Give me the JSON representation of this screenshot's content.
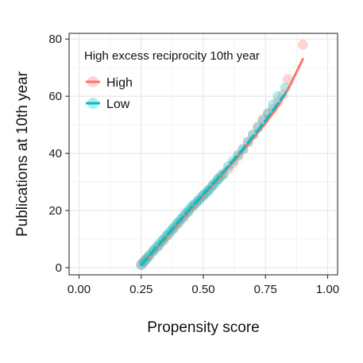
{
  "chart_data": {
    "type": "scatter",
    "title": "",
    "xlabel": "Propensity score",
    "ylabel": "Publications at 10th year",
    "xlim": [
      -0.04,
      1.04
    ],
    "ylim": [
      -2.5,
      82.0
    ],
    "xticks": [
      0.0,
      0.25,
      0.5,
      0.75,
      1.0
    ],
    "xtick_labels": [
      "0.00",
      "0.25",
      "0.50",
      "0.75",
      "1.00"
    ],
    "yticks": [
      0,
      20,
      40,
      60,
      80
    ],
    "ytick_labels": [
      "0",
      "20",
      "40",
      "60",
      "80"
    ],
    "grid": true,
    "legend": {
      "title": "High excess reciprocity 10th year",
      "placement": "top-left",
      "entries": [
        "High",
        "Low"
      ]
    },
    "series": [
      {
        "name": "High",
        "color": "#F8766D",
        "x": [
          0.25,
          0.26,
          0.27,
          0.28,
          0.3,
          0.32,
          0.34,
          0.36,
          0.38,
          0.4,
          0.42,
          0.44,
          0.46,
          0.48,
          0.5,
          0.52,
          0.54,
          0.56,
          0.58,
          0.6,
          0.62,
          0.64,
          0.66,
          0.68,
          0.7,
          0.72,
          0.74,
          0.76,
          0.78,
          0.8,
          0.82,
          0.84,
          0.9
        ],
        "y": [
          1,
          2,
          3,
          4,
          6,
          7.5,
          9.5,
          11.5,
          13.5,
          15.5,
          17.5,
          19.5,
          21.5,
          23.5,
          25,
          27,
          29,
          31,
          32.5,
          34.5,
          36.5,
          39,
          41.5,
          44,
          46.5,
          49.5,
          52,
          54,
          55.5,
          58,
          60.5,
          66,
          78
        ],
        "trend_x": [
          0.25,
          0.3,
          0.35,
          0.4,
          0.45,
          0.5,
          0.55,
          0.6,
          0.65,
          0.7,
          0.75,
          0.8,
          0.85,
          0.9
        ],
        "trend_y": [
          1,
          5.5,
          10.5,
          15.5,
          20.5,
          25.2,
          30,
          35,
          40,
          45.3,
          50.5,
          56.5,
          64,
          73
        ]
      },
      {
        "name": "Low",
        "color": "#00BFC4",
        "x": [
          0.25,
          0.26,
          0.27,
          0.28,
          0.29,
          0.3,
          0.31,
          0.32,
          0.33,
          0.34,
          0.35,
          0.36,
          0.37,
          0.38,
          0.39,
          0.4,
          0.41,
          0.42,
          0.43,
          0.44,
          0.45,
          0.46,
          0.47,
          0.48,
          0.49,
          0.5,
          0.51,
          0.52,
          0.53,
          0.54,
          0.55,
          0.56,
          0.57,
          0.58,
          0.6,
          0.62,
          0.64,
          0.66,
          0.68,
          0.7,
          0.72,
          0.74,
          0.76,
          0.78,
          0.8,
          0.83
        ],
        "y": [
          1,
          2,
          3,
          4,
          5,
          6,
          7,
          8,
          9,
          10,
          11,
          12,
          13,
          14,
          15,
          16,
          17,
          18,
          19,
          20,
          21,
          22,
          22.5,
          23.5,
          24.5,
          25.5,
          26,
          27,
          28,
          29,
          30,
          31,
          32,
          33,
          35.5,
          37.5,
          39.5,
          41.5,
          44,
          46.5,
          49,
          51.5,
          54,
          57,
          60,
          63
        ],
        "trend_x": [
          0.25,
          0.3,
          0.35,
          0.4,
          0.45,
          0.5,
          0.55,
          0.6,
          0.65,
          0.7,
          0.75,
          0.8,
          0.83
        ],
        "trend_y": [
          1,
          6,
          11,
          16,
          21,
          25.7,
          30.5,
          35.5,
          40.5,
          46,
          51.5,
          57.5,
          61
        ]
      }
    ]
  }
}
